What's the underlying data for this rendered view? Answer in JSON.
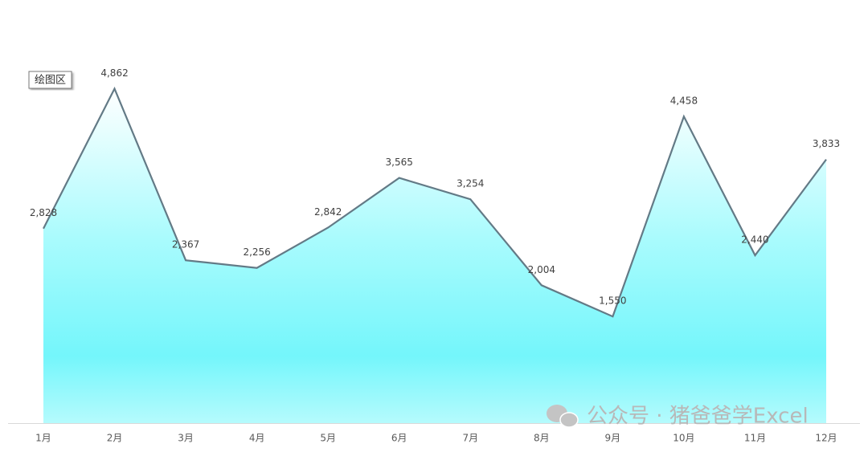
{
  "chart_data": {
    "type": "area",
    "categories": [
      "1月",
      "2月",
      "3月",
      "4月",
      "5月",
      "6月",
      "7月",
      "8月",
      "9月",
      "10月",
      "11月",
      "12月"
    ],
    "values": [
      2828,
      4862,
      2367,
      2256,
      2842,
      3565,
      3254,
      2004,
      1550,
      4458,
      2440,
      3833
    ],
    "value_labels": [
      "2,828",
      "4,862",
      "2,367",
      "2,256",
      "2,842",
      "3,565",
      "3,254",
      "2,004",
      "1,550",
      "4,458",
      "2,440",
      "3,833"
    ],
    "color": "#637a86",
    "fill_color": "#74f6fb",
    "ylim": [
      0,
      6000
    ],
    "tooltip": "绘图区",
    "watermark": "公众号 · 猪爸爸学Excel"
  }
}
